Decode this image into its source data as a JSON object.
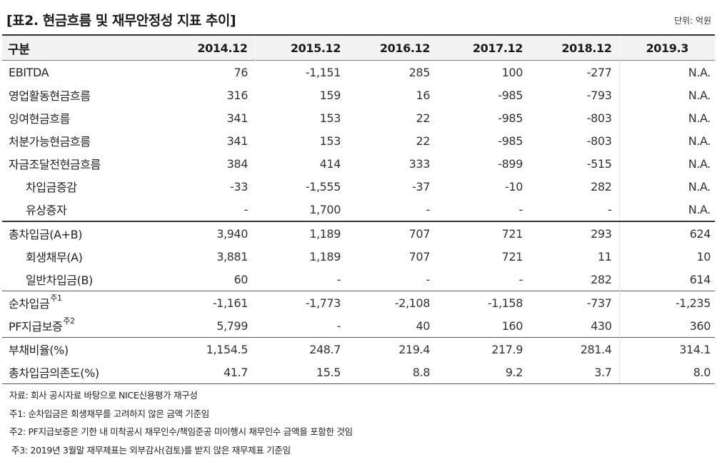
{
  "title": "[표2. 현금흐름 및 재무안정성 지표 추이]",
  "unit": "단위: 억원",
  "table": {
    "header": [
      "구분",
      "2014.12",
      "2015.12",
      "2016.12",
      "2017.12",
      "2018.12",
      "2019.3"
    ],
    "rows": [
      {
        "label": "EBITDA",
        "indent": false,
        "values": [
          "76",
          "-1,151",
          "285",
          "100",
          "-277",
          "N.A."
        ]
      },
      {
        "label": "영업활동현금흐름",
        "indent": false,
        "values": [
          "316",
          "159",
          "16",
          "-985",
          "-793",
          "N.A."
        ]
      },
      {
        "label": "잉여현금흐름",
        "indent": false,
        "values": [
          "341",
          "153",
          "22",
          "-985",
          "-803",
          "N.A."
        ]
      },
      {
        "label": "처분가능현금흐름",
        "indent": false,
        "values": [
          "341",
          "153",
          "22",
          "-985",
          "-803",
          "N.A."
        ]
      },
      {
        "label": "자금조달전현금흐름",
        "indent": false,
        "values": [
          "384",
          "414",
          "333",
          "-899",
          "-515",
          "N.A."
        ]
      },
      {
        "label": "차입금증감",
        "indent": true,
        "values": [
          "-33",
          "-1,555",
          "-37",
          "-10",
          "282",
          "N.A."
        ]
      },
      {
        "label": "유상증자",
        "indent": true,
        "values": [
          "-",
          "1,700",
          "-",
          "-",
          "-",
          "N.A."
        ]
      },
      {
        "label": "총차입금(A+B)",
        "indent": false,
        "values": [
          "3,940",
          "1,189",
          "707",
          "721",
          "293",
          "624"
        ]
      },
      {
        "label": "회생채무(A)",
        "indent": true,
        "values": [
          "3,881",
          "1,189",
          "707",
          "721",
          "11",
          "10"
        ]
      },
      {
        "label": "일반차입금(B)",
        "indent": true,
        "values": [
          "60",
          "-",
          "-",
          "-",
          "282",
          "614"
        ]
      },
      {
        "label": "순차입금",
        "sup": "주1",
        "indent": false,
        "values": [
          "-1,161",
          "-1,773",
          "-2,108",
          "-1,158",
          "-737",
          "-1,235"
        ]
      },
      {
        "label": "PF지급보증",
        "sup": "주2",
        "indent": false,
        "values": [
          "5,799",
          "-",
          "40",
          "160",
          "430",
          "360"
        ]
      },
      {
        "label": "부채비율(%)",
        "indent": false,
        "values": [
          "1,154.5",
          "248.7",
          "219.4",
          "217.9",
          "281.4",
          "314.1"
        ]
      },
      {
        "label": "총차입금의존도(%)",
        "indent": false,
        "values": [
          "41.7",
          "15.5",
          "8.8",
          "9.2",
          "3.7",
          "8.0"
        ]
      }
    ]
  },
  "notes": [
    "자료: 회사 공시자료 바탕으로 NICE신용평가 재구성",
    "주1: 순차입금은 회생채무를 고려하지 않은 금액 기준임",
    "주2: PF지급보증은 기한 내 미착공시 채무인수/책임준공 미이행시 채무인수 금액을 포함한 것임",
    "주3: 2019년 3월말 재무제표는 외부감사(검토)를 받지 않은 재무제표 기준임"
  ]
}
